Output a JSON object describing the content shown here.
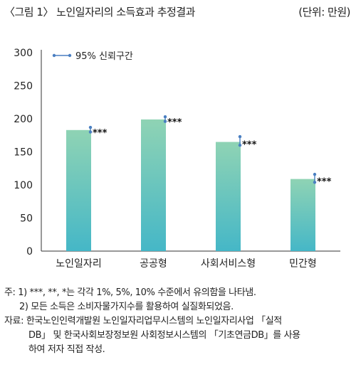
{
  "header": {
    "title": "〈그림 1〉 노인일자리의 소득효과 추정결과",
    "unit": "(단위: 만원)"
  },
  "chart_data": {
    "type": "bar",
    "categories": [
      "노인일자리",
      "공공형",
      "사회서비스형",
      "민간형"
    ],
    "values": [
      183,
      199,
      165,
      109
    ],
    "ci_low": [
      180,
      196,
      160,
      104
    ],
    "ci_high": [
      187,
      203,
      173,
      116
    ],
    "significance": [
      "***",
      "***",
      "***",
      "***"
    ],
    "ylim": [
      0,
      300
    ],
    "yticks": [
      0,
      50,
      100,
      150,
      200,
      250,
      300
    ],
    "legend": {
      "label": "95% 신뢰구간",
      "position": "top-left"
    },
    "grid": false,
    "colors": {
      "bar_top": "#8fd3b4",
      "bar_bottom": "#45b7c7",
      "ci": "#4a7fc1"
    }
  },
  "notes": {
    "line1": "주: 1) ***, **, *는 각각 1%, 5%, 10% 수준에서 유의함을 나타냄.",
    "line2": "2) 모든 소득은 소비자물가지수를 활용하여 실질화되었음.",
    "line3": "자료: 한국노인인력개발원 노인일자리업무시스템의 노인일자리사업 「실적",
    "line4": "DB」 및 한국사회보장정보원 사회정보시스템의 「기초연금DB」를 사용",
    "line5": "하여 저자 직접 작성."
  }
}
